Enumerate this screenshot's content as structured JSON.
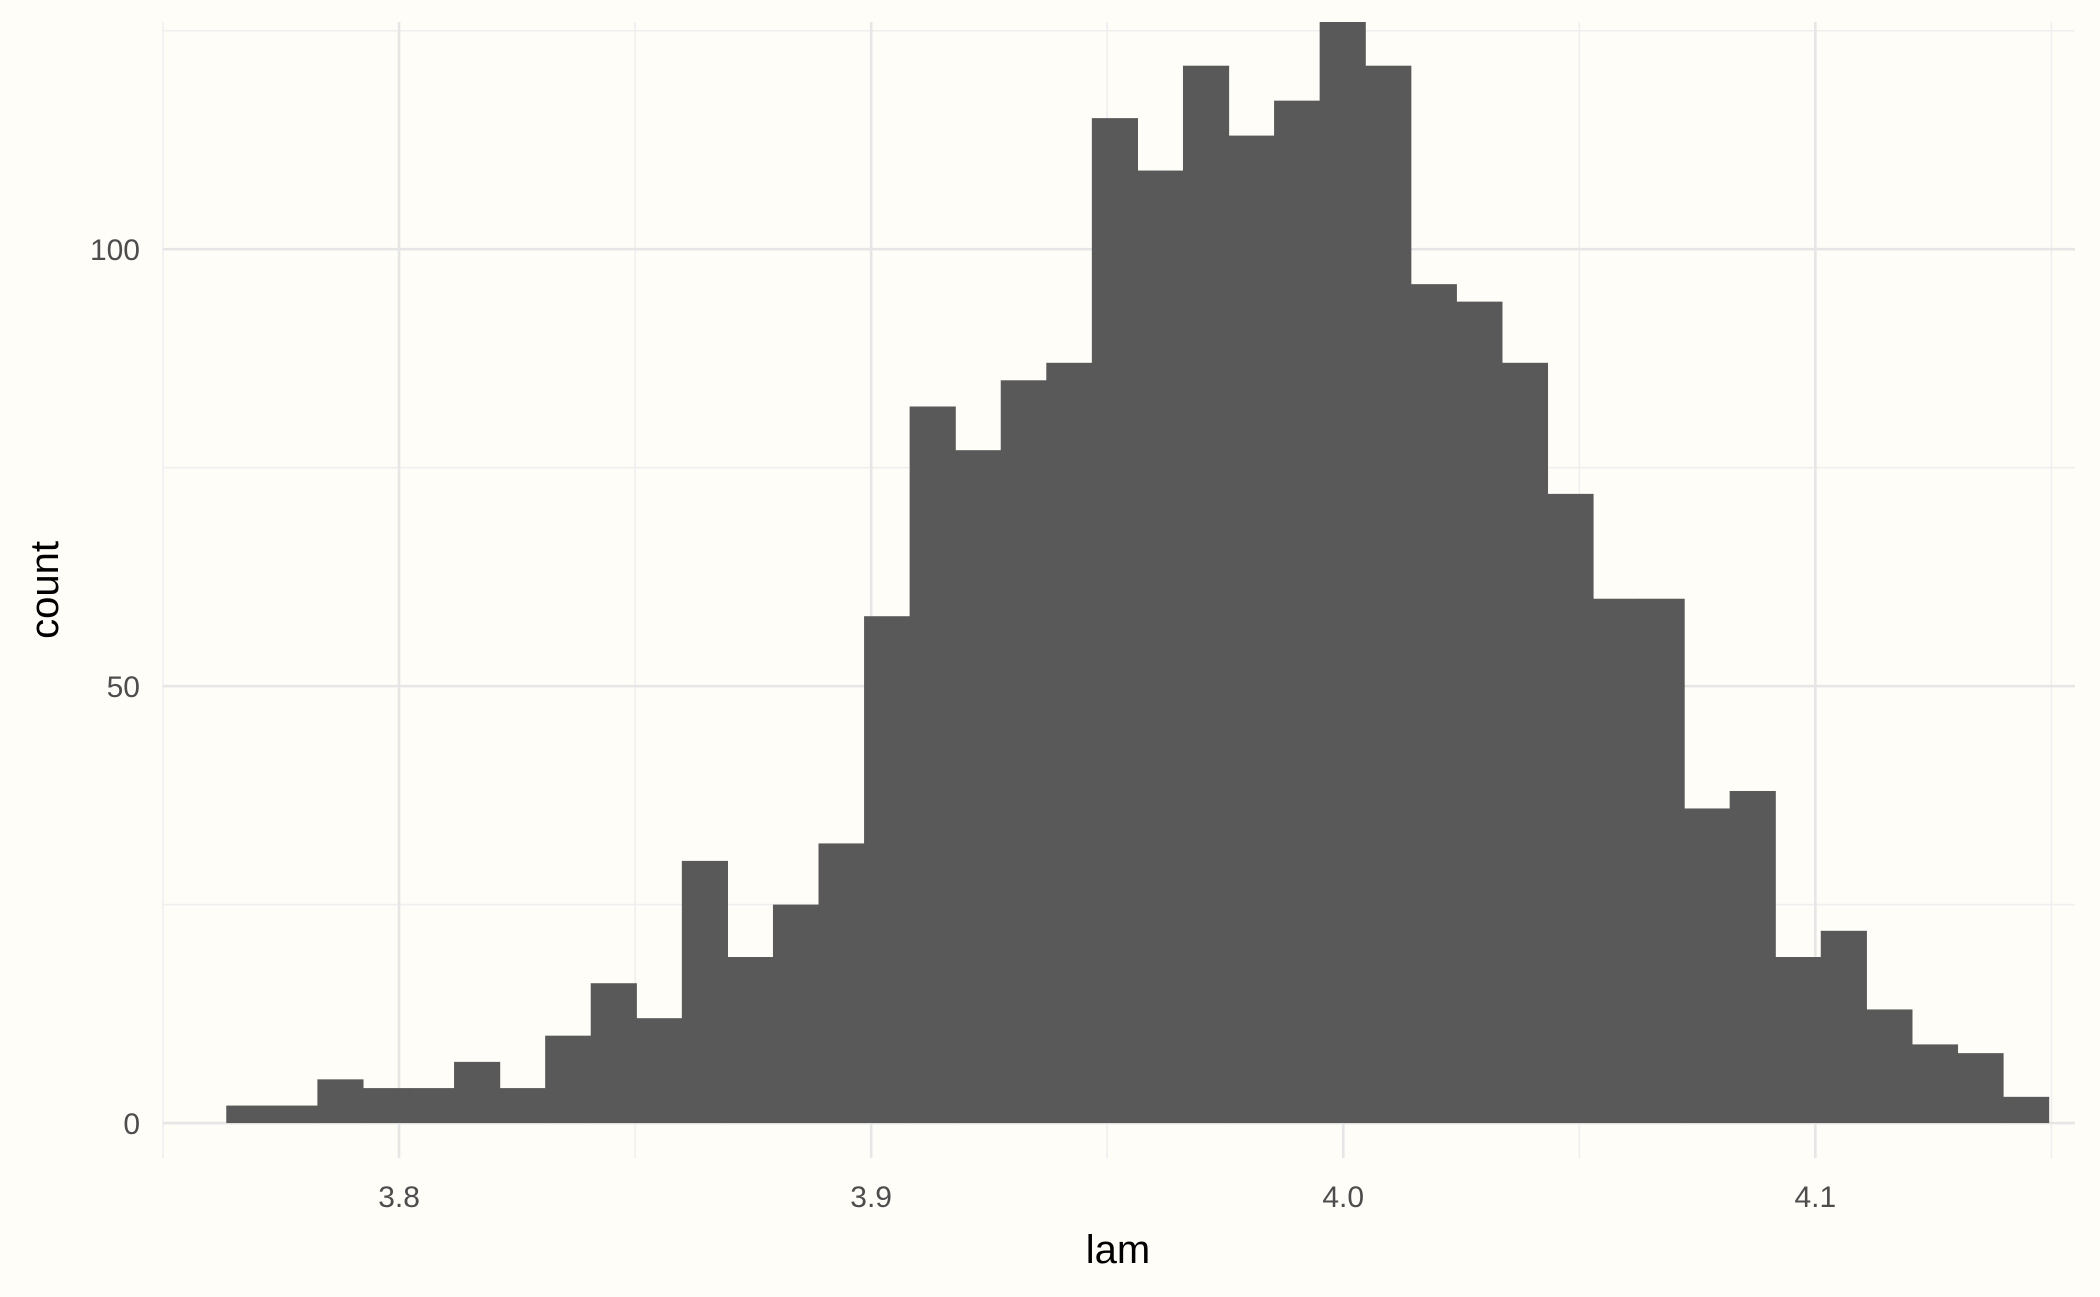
{
  "chart_data": {
    "type": "bar",
    "title": "",
    "xlabel": "lam",
    "ylabel": "count",
    "bar_color": "#595959",
    "background": "#fffdf7",
    "grid": true,
    "legend": "none",
    "xlim": [
      3.75,
      4.155
    ],
    "ylim": [
      -4,
      126
    ],
    "x_ticks": [
      3.8,
      3.9,
      4.0,
      4.1
    ],
    "x_tick_labels": [
      "3.8",
      "3.9",
      "4.0",
      "4.1"
    ],
    "y_ticks": [
      0,
      50,
      100
    ],
    "y_tick_labels": [
      "0",
      "50",
      "100"
    ],
    "bin_width": 0.00965,
    "bin_start": 3.7634,
    "counts": [
      2,
      2,
      5,
      4,
      4,
      7,
      4,
      10,
      16,
      12,
      30,
      19,
      25,
      32,
      58,
      82,
      77,
      85,
      87,
      115,
      109,
      121,
      113,
      117,
      126,
      121,
      96,
      94,
      87,
      72,
      60,
      60,
      36,
      38,
      19,
      22,
      13,
      9,
      8,
      3
    ]
  }
}
